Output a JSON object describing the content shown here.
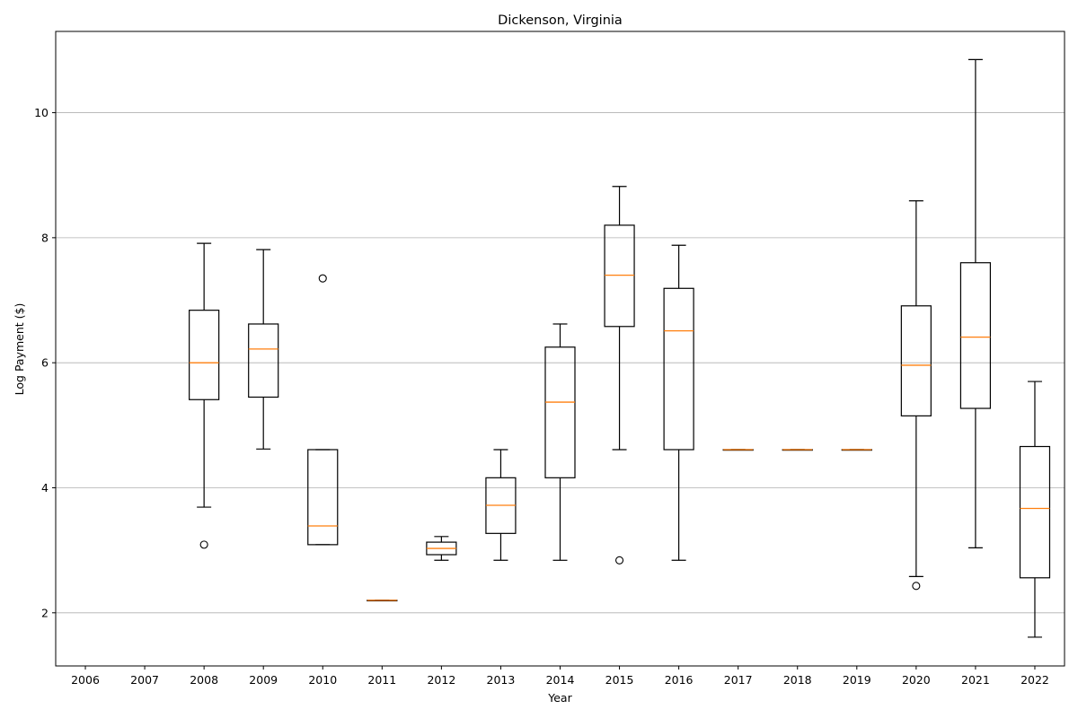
{
  "chart_data": {
    "type": "boxplot",
    "title": "Dickenson, Virginia",
    "xlabel": "Year",
    "ylabel": "Log Payment ($)",
    "ylim": [
      1.15,
      11.3
    ],
    "yticks": [
      2,
      4,
      6,
      8,
      10
    ],
    "grid": "y",
    "categories": [
      "2006",
      "2007",
      "2008",
      "2009",
      "2010",
      "2011",
      "2012",
      "2013",
      "2014",
      "2015",
      "2016",
      "2017",
      "2018",
      "2019",
      "2020",
      "2021",
      "2022"
    ],
    "boxes": [
      null,
      null,
      {
        "whislo": 3.69,
        "q1": 5.41,
        "med": 6.0,
        "q3": 6.84,
        "whishi": 7.91,
        "fliers": [
          3.09
        ]
      },
      {
        "whislo": 4.62,
        "q1": 5.45,
        "med": 6.22,
        "q3": 6.62,
        "whishi": 7.81,
        "fliers": []
      },
      {
        "whislo": 3.09,
        "q1": 3.09,
        "med": 3.39,
        "q3": 4.61,
        "whishi": 4.61,
        "fliers": [
          7.35
        ]
      },
      {
        "whislo": 2.2,
        "q1": 2.2,
        "med": 2.2,
        "q3": 2.2,
        "whishi": 2.2,
        "fliers": []
      },
      {
        "whislo": 2.84,
        "q1": 2.93,
        "med": 3.03,
        "q3": 3.13,
        "whishi": 3.22,
        "fliers": []
      },
      {
        "whislo": 2.84,
        "q1": 3.27,
        "med": 3.72,
        "q3": 4.16,
        "whishi": 4.61,
        "fliers": []
      },
      {
        "whislo": 2.84,
        "q1": 4.16,
        "med": 5.37,
        "q3": 6.25,
        "whishi": 6.62,
        "fliers": []
      },
      {
        "whislo": 4.61,
        "q1": 6.58,
        "med": 7.4,
        "q3": 8.2,
        "whishi": 8.82,
        "fliers": [
          2.84
        ]
      },
      {
        "whislo": 2.84,
        "q1": 4.61,
        "med": 6.51,
        "q3": 7.19,
        "whishi": 7.88,
        "fliers": []
      },
      {
        "whislo": 4.61,
        "q1": 4.61,
        "med": 4.61,
        "q3": 4.61,
        "whishi": 4.61,
        "fliers": []
      },
      {
        "whislo": 4.61,
        "q1": 4.61,
        "med": 4.61,
        "q3": 4.61,
        "whishi": 4.61,
        "fliers": []
      },
      {
        "whislo": 4.61,
        "q1": 4.61,
        "med": 4.61,
        "q3": 4.61,
        "whishi": 4.61,
        "fliers": []
      },
      {
        "whislo": 2.58,
        "q1": 5.15,
        "med": 5.96,
        "q3": 6.91,
        "whishi": 8.59,
        "fliers": [
          2.43
        ]
      },
      {
        "whislo": 3.04,
        "q1": 5.27,
        "med": 6.41,
        "q3": 7.6,
        "whishi": 10.85,
        "fliers": []
      },
      {
        "whislo": 1.61,
        "q1": 2.56,
        "med": 3.67,
        "q3": 4.66,
        "whishi": 5.7,
        "fliers": []
      }
    ],
    "colors": {
      "box": "#000000",
      "median": "#ff7f0e",
      "grid": "#b0b0b0"
    }
  }
}
